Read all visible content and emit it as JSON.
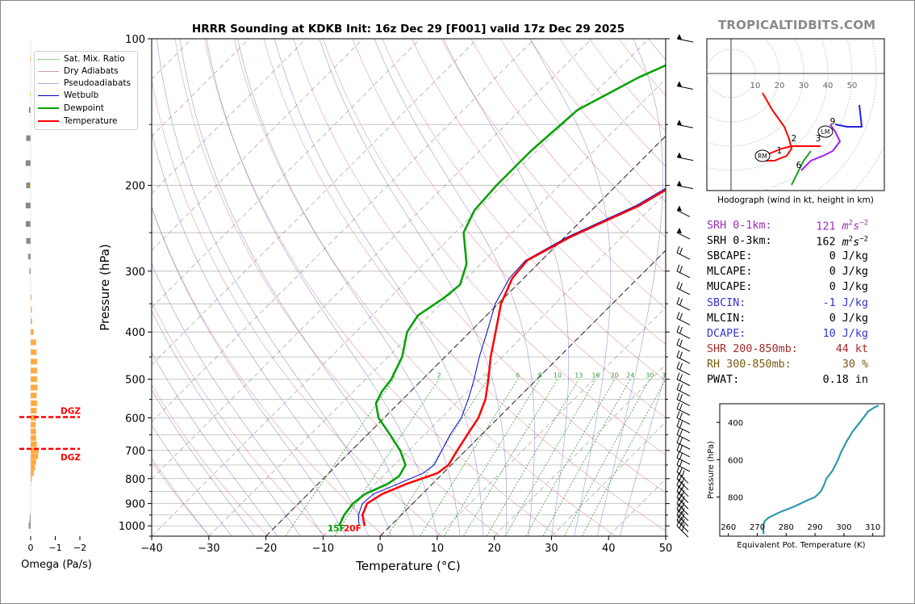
{
  "chart_data": [
    {
      "type": "line",
      "name": "skew-t",
      "title": "HRRR Sounding at KDKB Init: 16z Dec 29 [F001] valid 17z Dec 29 2025",
      "xlabel": "Temperature (°C)",
      "ylabel": "Pressure (hPa)",
      "xlim": [
        -40,
        50
      ],
      "ylim": [
        1050,
        100
      ],
      "x_ticks": [
        -40,
        -30,
        -20,
        -10,
        0,
        10,
        20,
        30,
        40,
        50
      ],
      "x_tick_labels": [
        "−40",
        "−30",
        "−20",
        "−10",
        "0",
        "10",
        "20",
        "30",
        "40",
        "50"
      ],
      "y_tick_labels": [
        "100",
        "200",
        "300",
        "400",
        "500",
        "600",
        "700",
        "800",
        "900",
        "1000"
      ],
      "y_ticks": [
        100,
        200,
        300,
        400,
        500,
        600,
        700,
        800,
        900,
        1000
      ],
      "surface_labels": {
        "dewpoint": "15F",
        "temperature": "20F"
      },
      "mixing_ratio_labels": [
        "1",
        "2",
        "4",
        "6",
        "8",
        "10",
        "13",
        "16",
        "20",
        "24",
        "30",
        "36"
      ],
      "series": [
        {
          "name": "Temperature",
          "points": [
            [
              -4.5,
              1000
            ],
            [
              -6.8,
              950
            ],
            [
              -8.0,
              900
            ],
            [
              -7.0,
              860
            ],
            [
              -4.5,
              820
            ],
            [
              -1.0,
              780
            ],
            [
              -0.5,
              750
            ],
            [
              -1.5,
              700
            ],
            [
              -2.5,
              650
            ],
            [
              -3.5,
              600
            ],
            [
              -5.5,
              550
            ],
            [
              -8.5,
              500
            ],
            [
              -12.0,
              450
            ],
            [
              -15.5,
              400
            ],
            [
              -19.5,
              350
            ],
            [
              -22.0,
              310
            ],
            [
              -22.5,
              285
            ],
            [
              -19.0,
              255
            ],
            [
              -12.5,
              220
            ],
            [
              -10.0,
              200
            ],
            [
              -5.5,
              170
            ],
            [
              -2.5,
              150
            ],
            [
              1.5,
              125
            ],
            [
              4.5,
              100
            ]
          ]
        },
        {
          "name": "Dewpoint",
          "points": [
            [
              -9.0,
              1000
            ],
            [
              -10.0,
              950
            ],
            [
              -10.5,
              900
            ],
            [
              -10.0,
              860
            ],
            [
              -7.8,
              820
            ],
            [
              -7.2,
              790
            ],
            [
              -8.0,
              750
            ],
            [
              -11.5,
              700
            ],
            [
              -16.0,
              650
            ],
            [
              -21.0,
              600
            ],
            [
              -24.0,
              560
            ],
            [
              -25.0,
              530
            ],
            [
              -25.5,
              500
            ],
            [
              -27.5,
              450
            ],
            [
              -31.0,
              400
            ],
            [
              -32.0,
              370
            ],
            [
              -30.5,
              340
            ],
            [
              -30.0,
              320
            ],
            [
              -32.5,
              290
            ],
            [
              -38.5,
              250
            ],
            [
              -40.5,
              225
            ],
            [
              -41.0,
              200
            ],
            [
              -41.0,
              170
            ],
            [
              -40.0,
              140
            ],
            [
              -35.0,
              120
            ],
            [
              -26.5,
              100
            ]
          ]
        },
        {
          "name": "Wetbulb",
          "points": [
            [
              -5.5,
              1000
            ],
            [
              -7.5,
              950
            ],
            [
              -8.8,
              900
            ],
            [
              -8.5,
              860
            ],
            [
              -6.0,
              820
            ],
            [
              -3.5,
              780
            ],
            [
              -3.0,
              750
            ],
            [
              -4.2,
              700
            ],
            [
              -5.5,
              650
            ],
            [
              -6.5,
              600
            ],
            [
              -8.5,
              550
            ],
            [
              -11.0,
              500
            ],
            [
              -14.0,
              450
            ],
            [
              -17.0,
              400
            ],
            [
              -20.5,
              350
            ],
            [
              -22.5,
              310
            ],
            [
              -22.8,
              285
            ],
            [
              -19.5,
              255
            ],
            [
              -13.0,
              220
            ],
            [
              -10.5,
              200
            ],
            [
              -6.0,
              170
            ],
            [
              -3.0,
              150
            ],
            [
              1.0,
              125
            ],
            [
              3.5,
              100
            ]
          ]
        }
      ],
      "legend": [
        "Sat. Mix. Ratio",
        "Dry Adiabats",
        "Pseudoadiabats",
        "Wetbulb",
        "Dewpoint",
        "Temperature"
      ],
      "legend_placement": "top-left"
    },
    {
      "type": "bar",
      "name": "omega-profile",
      "xlabel": "Omega (Pa/s)",
      "x_ticks": [
        0,
        -1,
        -2
      ],
      "x_tick_labels": [
        "0",
        "−1",
        "−2"
      ],
      "dgz_label": "DGZ",
      "dgz_levels": [
        598,
        695
      ],
      "levels": [
        1000,
        985,
        970,
        955,
        935,
        920,
        900,
        880,
        860,
        840,
        820,
        800,
        780,
        760,
        740,
        720,
        700,
        680,
        660,
        640,
        620,
        600,
        580,
        560,
        540,
        520,
        500,
        480,
        460,
        440,
        420,
        400,
        380,
        360,
        340,
        320,
        300,
        280,
        260,
        240,
        220,
        200,
        180,
        160,
        140,
        120,
        100
      ],
      "values": [
        0.08,
        0.05,
        0.04,
        0.03,
        0.0,
        0.0,
        0.0,
        0.0,
        0.0,
        0.0,
        -0.02,
        -0.05,
        -0.12,
        -0.18,
        -0.22,
        -0.3,
        -0.32,
        -0.25,
        -0.22,
        -0.22,
        -0.2,
        -0.22,
        -0.24,
        -0.26,
        -0.24,
        -0.28,
        -0.26,
        -0.26,
        -0.26,
        -0.24,
        -0.22,
        -0.12,
        -0.06,
        -0.05,
        -0.04,
        0.0,
        0.05,
        0.1,
        0.18,
        0.2,
        0.2,
        0.18,
        0.2,
        0.18,
        0.07,
        0.0,
        0.0
      ]
    },
    {
      "type": "line",
      "name": "hodograph",
      "xlabel": "Hodograph (wind in kt, height in km)",
      "ring_labels": [
        "10",
        "20",
        "30",
        "40",
        "50"
      ],
      "height_labels": [
        "1",
        "2",
        "3",
        "6",
        "9"
      ],
      "motion_labels": [
        "RM",
        "LM"
      ],
      "series": [
        {
          "name": "0-1 km",
          "color": "#ff0000",
          "points": [
            [
              13,
              -8
            ],
            [
              17,
              -15
            ],
            [
              22,
              -22
            ],
            [
              24,
              -27
            ],
            [
              25,
              -31
            ],
            [
              23,
              -34
            ],
            [
              18,
              -36
            ],
            [
              12,
              -36
            ],
            [
              16,
              -33
            ],
            [
              21,
              -31
            ]
          ]
        },
        {
          "name": "1-3 km",
          "color": "#ff0000",
          "points": [
            [
              21,
              -31
            ],
            [
              25,
              -30
            ],
            [
              30,
              -30
            ],
            [
              34,
              -30
            ],
            [
              37,
              -30
            ]
          ]
        },
        {
          "name": "3-6 km",
          "color": "#1fa31f",
          "points": [
            [
              33,
              -32
            ],
            [
              30,
              -36
            ],
            [
              28,
              -40
            ],
            [
              26,
              -44
            ],
            [
              25,
              -46
            ]
          ]
        },
        {
          "name": "6-9 km",
          "color": "#a020f0",
          "points": [
            [
              29,
              -40
            ],
            [
              33,
              -36
            ],
            [
              38,
              -34
            ],
            [
              42,
              -32
            ],
            [
              45,
              -28
            ],
            [
              43,
              -24
            ],
            [
              41,
              -21
            ]
          ]
        },
        {
          "name": "9+ km",
          "color": "#2222dd",
          "points": [
            [
              43,
              -21
            ],
            [
              48,
              -22
            ],
            [
              54,
              -22
            ],
            [
              53,
              -13
            ]
          ]
        }
      ]
    },
    {
      "type": "line",
      "name": "theta-e-profile",
      "xlabel": "Equivalent Pot. Temperature (K)",
      "ylabel": "Pressure (hPa)",
      "x_ticks": [
        260,
        270,
        280,
        290,
        300,
        310
      ],
      "x_tick_labels": [
        "260",
        "270",
        "280",
        "290",
        "300",
        "310"
      ],
      "y_ticks": [
        400,
        600,
        800
      ],
      "y_tick_labels": [
        "400",
        "600",
        "800"
      ],
      "series": [
        {
          "name": "Theta-e",
          "color": "#2e9aaa",
          "points": [
            [
              272.2,
              1000
            ],
            [
              272.0,
              960
            ],
            [
              272.5,
              930
            ],
            [
              274,
              910
            ],
            [
              278,
              880
            ],
            [
              283,
              850
            ],
            [
              287,
              820
            ],
            [
              290,
              800
            ],
            [
              292,
              770
            ],
            [
              293,
              740
            ],
            [
              294,
              700
            ],
            [
              296,
              660
            ],
            [
              298,
              600
            ],
            [
              299,
              560
            ],
            [
              301,
              500
            ],
            [
              303,
              450
            ],
            [
              305,
              410
            ],
            [
              307,
              370
            ],
            [
              308.5,
              340
            ],
            [
              310.5,
              320
            ],
            [
              312,
              310
            ]
          ]
        }
      ]
    }
  ],
  "watermark": "TROPICALTIDBITS.COM",
  "legend_labels": {
    "sat_mix_ratio": "Sat. Mix. Ratio",
    "dry_adiabats": "Dry Adiabats",
    "pseudoadiabats": "Pseudoadiabats",
    "wetbulb": "Wetbulb",
    "dewpoint": "Dewpoint",
    "temperature": "Temperature"
  },
  "colors": {
    "temperature": "#ff0000",
    "dewpoint": "#00a000",
    "wetbulb": "#0000cc",
    "dry_adiabat": "#d44a5a",
    "pseudoadiabat": "#5555cc",
    "mixing_ratio": "#3a9a3a",
    "isobar": "#b8b8b8",
    "omega_rising": "#ffa940",
    "omega_sinking": "#888888",
    "dgz": "#ff0000",
    "theta_e": "#2e9aaa"
  },
  "parameters": [
    {
      "label": "SRH 0-1km:",
      "value": "121",
      "unit": "m2s-2",
      "color": "#9b30b0"
    },
    {
      "label": "SRH 0-3km:",
      "value": "162",
      "unit": "m2s-2",
      "color": "#000000"
    },
    {
      "label": "SBCAPE:",
      "value": "0",
      "unit": "J/kg",
      "color": "#000000"
    },
    {
      "label": "MLCAPE:",
      "value": "0",
      "unit": "J/kg",
      "color": "#000000"
    },
    {
      "label": "MUCAPE:",
      "value": "0",
      "unit": "J/kg",
      "color": "#000000"
    },
    {
      "label": "SBCIN:",
      "value": "-1",
      "unit": "J/kg",
      "color": "#3535cc"
    },
    {
      "label": "MLCIN:",
      "value": "0",
      "unit": "J/kg",
      "color": "#000000"
    },
    {
      "label": "DCAPE:",
      "value": "10",
      "unit": "J/kg",
      "color": "#3535cc"
    },
    {
      "label": "SHR 200-850mb:",
      "value": "44",
      "unit": "kt",
      "color": "#a52a2a"
    },
    {
      "label": "RH 300-850mb:",
      "value": "30",
      "unit": "%",
      "color": "#7a5a10"
    },
    {
      "label": "PWAT:",
      "value": "0.18",
      "unit": "in",
      "color": "#000000"
    }
  ]
}
